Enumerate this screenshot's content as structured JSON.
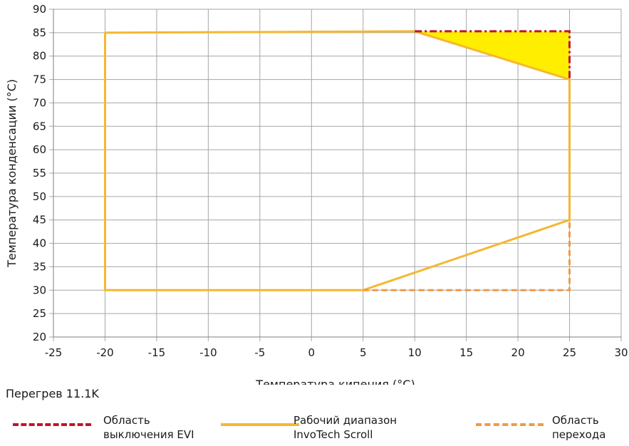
{
  "chart_data": {
    "type": "line",
    "title": "",
    "xlabel": "Температура кипения (°C)",
    "ylabel": "Температура конденсации (°C)",
    "xlim": [
      -25,
      30
    ],
    "ylim": [
      20,
      90
    ],
    "xticks": [
      "-25",
      "-20",
      "-15",
      "-10",
      "-5",
      "0",
      "5",
      "10",
      "15",
      "20",
      "25",
      "30"
    ],
    "yticks": [
      "20",
      "25",
      "30",
      "35",
      "40",
      "45",
      "50",
      "55",
      "60",
      "65",
      "70",
      "75",
      "80",
      "85",
      "90"
    ],
    "grid": true,
    "series": [
      {
        "name": "Рабочий диапазон\nInvoTech Scroll",
        "style": "solid",
        "color": "#f5b731",
        "x": [
          -20,
          10,
          25,
          25,
          5,
          -20,
          -20
        ],
        "y": [
          85,
          85.3,
          75,
          45,
          30,
          30,
          85
        ]
      },
      {
        "name": "Область\nвыключения EVI",
        "style": "dashdot",
        "color": "#c0152a",
        "fill": "#ffee00",
        "x": [
          10,
          25,
          25
        ],
        "y": [
          85.3,
          85.3,
          75
        ]
      },
      {
        "name": "Область\nперехода",
        "style": "dashed",
        "color": "#f29a44",
        "x": [
          5,
          25,
          25
        ],
        "y": [
          30,
          30,
          45
        ]
      }
    ]
  },
  "note": "Перегрев 11.1K"
}
